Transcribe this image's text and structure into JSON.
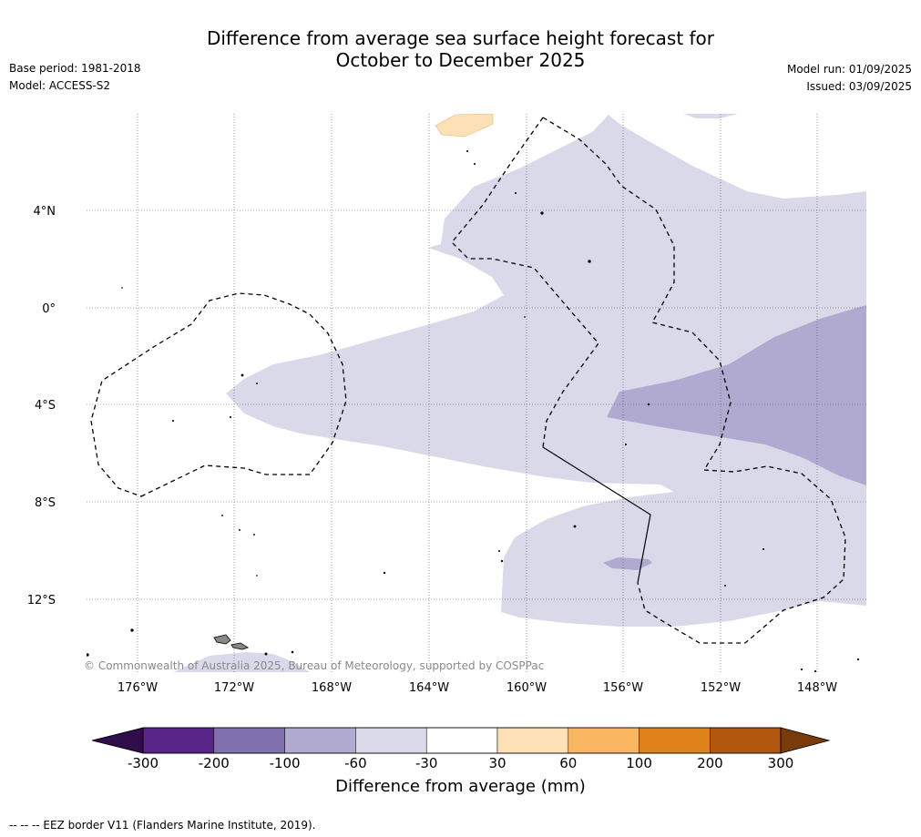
{
  "title_line1": "Difference from average sea surface height forecast for",
  "title_line2": "October to December 2025",
  "meta_left": {
    "base_period": "Base period: 1981-2018",
    "model": "Model: ACCESS-S2"
  },
  "meta_right": {
    "model_run": "Model run: 01/09/2025",
    "issued": "Issued: 03/09/2025"
  },
  "map": {
    "lat_labels": [
      "4°N",
      "0°",
      "4°S",
      "8°S",
      "12°S"
    ],
    "lon_labels": [
      "176°W",
      "172°W",
      "168°W",
      "164°W",
      "160°W",
      "156°W",
      "152°W",
      "148°W"
    ],
    "copyright": "© Commonwealth of Australia 2025, Bureau of Meteorology, supported by COSPPac"
  },
  "colorbar": {
    "colors": [
      "#2e0d4a",
      "#582485",
      "#8070ad",
      "#b0a9d0",
      "#d9d9ea",
      "#ffffff",
      "#fde0b6",
      "#f9b661",
      "#e0821a",
      "#b1570b",
      "#7a3b0b"
    ],
    "ticks": [
      "-300",
      "-200",
      "-100",
      "-60",
      "-30",
      "30",
      "60",
      "100",
      "200",
      "300"
    ],
    "title": "Difference from average (mm)"
  },
  "footnote": "--  --  -- EEZ border V11 (Flanders Marine Institute, 2019)."
}
